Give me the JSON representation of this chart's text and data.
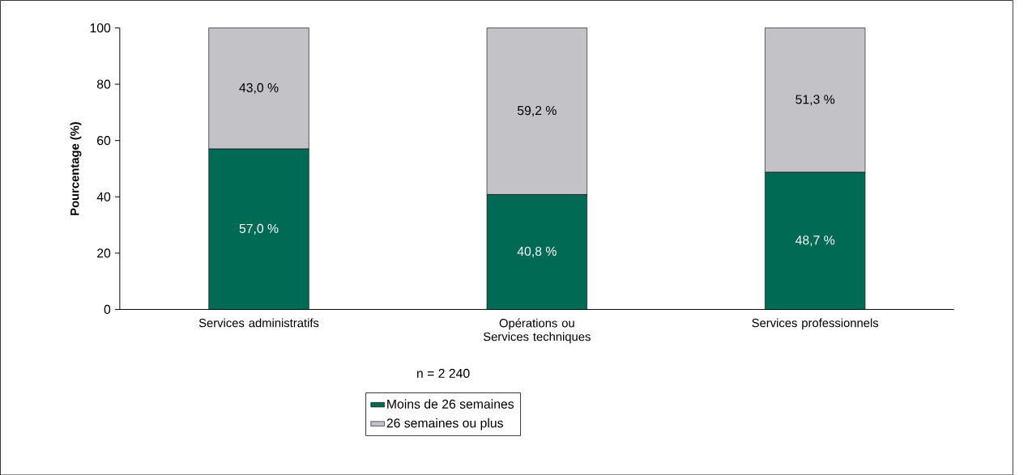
{
  "chart_data": {
    "type": "bar",
    "stacked": true,
    "ylabel": "Pourcentage (%)",
    "categories": [
      "Services administratifs",
      "Opérations ou Services techniques",
      "Services professionnels"
    ],
    "series": [
      {
        "name": "Moins de 26 semaines",
        "color": "#006a55",
        "values": [
          57.0,
          40.8,
          48.7
        ],
        "value_labels": [
          "57,0 %",
          "40,8 %",
          "48,7 %"
        ]
      },
      {
        "name": "26 semaines ou plus",
        "color": "#c3c3c7",
        "values": [
          43.0,
          59.2,
          51.3
        ],
        "value_labels": [
          "43,0 %",
          "59,2 %",
          "51,3 %"
        ]
      }
    ],
    "ylim": [
      0,
      100
    ],
    "yticks": [
      0,
      20,
      40,
      60,
      80,
      100
    ],
    "legend": "bottom",
    "annotations": [
      "n = 2 240"
    ]
  }
}
